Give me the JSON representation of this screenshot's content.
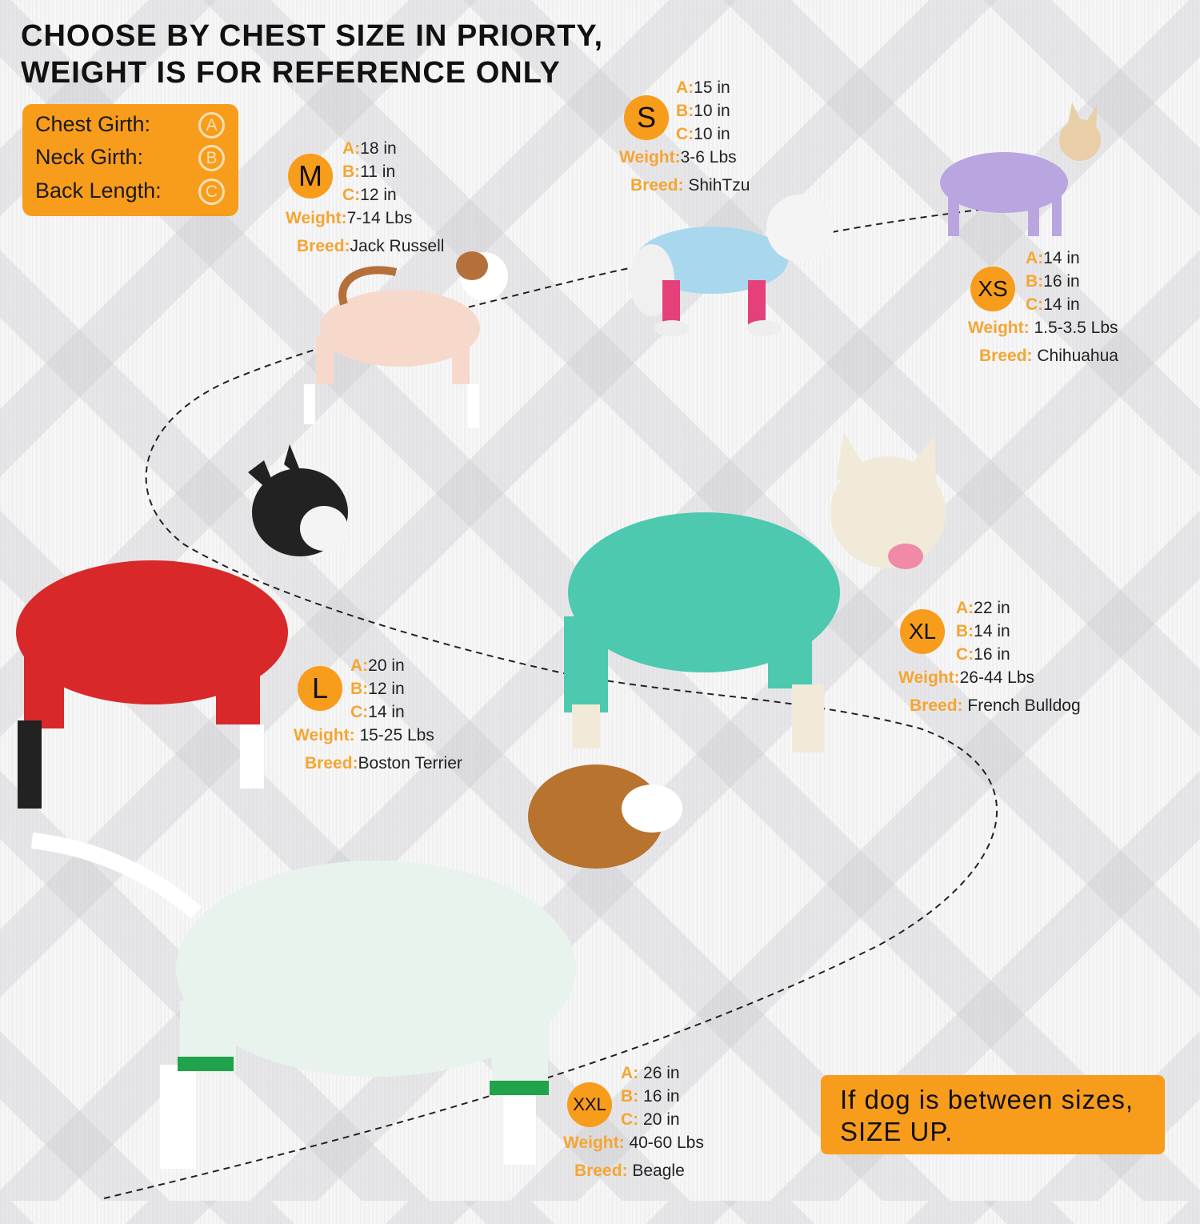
{
  "heading": {
    "line1": "CHOOSE BY CHEST SIZE IN PRIORTY,",
    "line2": "WEIGHT IS FOR REFERENCE ONLY"
  },
  "legend": {
    "items": [
      {
        "label": "Chest Girth:",
        "letter": "A"
      },
      {
        "label": "Neck Girth:",
        "letter": "B"
      },
      {
        "label": "Back Length:",
        "letter": "C"
      }
    ]
  },
  "labels": {
    "a": "A:",
    "b": "B:",
    "c": "C:",
    "weight": "Weight:",
    "breed": "Breed:"
  },
  "sizes": [
    {
      "size": "XS",
      "a": "14 in",
      "b": "16 in",
      "c": "14 in",
      "weight": "1.5-3.5 Lbs",
      "breed": "Chihuahua",
      "pajama_color": "#b9a6e0"
    },
    {
      "size": "S",
      "a": "15 in",
      "b": "10 in",
      "c": "10 in",
      "weight": "3-6 Lbs",
      "breed": "ShihTzu",
      "pajama_color": "#a9d8ee"
    },
    {
      "size": "M",
      "a": "18 in",
      "b": "11 in",
      "c": "12 in",
      "weight": "7-14 Lbs",
      "breed": "Jack Russell",
      "pajama_color": "#f7d9cc"
    },
    {
      "size": "L",
      "a": "20 in",
      "b": "12 in",
      "c": "14 in",
      "weight": "15-25 Lbs",
      "breed": "Boston Terrier",
      "pajama_color": "#d8282a"
    },
    {
      "size": "XL",
      "a": "22 in",
      "b": "14 in",
      "c": "16 in",
      "weight": "26-44 Lbs",
      "breed": "French Bulldog",
      "pajama_color": "#4cc9ae"
    },
    {
      "size": "XXL",
      "a": "26 in",
      "b": "16 in",
      "c": "20 in",
      "weight": "40-60 Lbs",
      "breed": "Beagle",
      "pajama_color": "#e8f3ee"
    }
  ],
  "note": {
    "line1": "If dog is between sizes,",
    "line2": "SIZE UP."
  },
  "colors": {
    "accent": "#f89c1c",
    "label": "#f5a531"
  }
}
